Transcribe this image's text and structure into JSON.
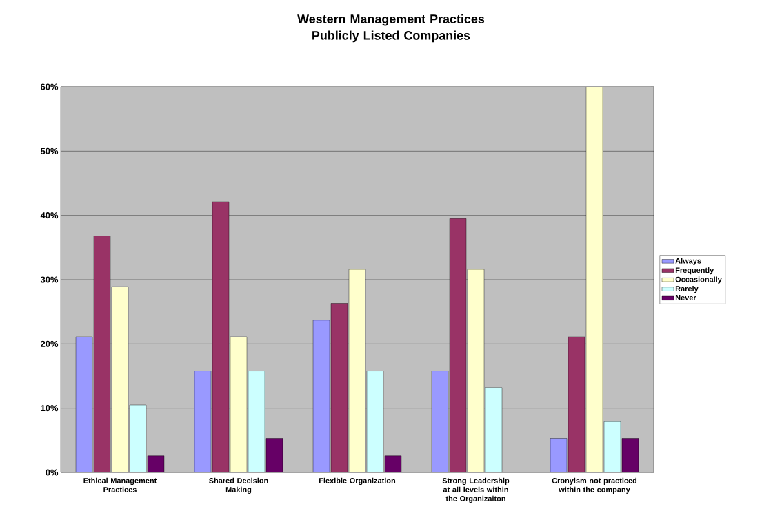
{
  "chart_data": {
    "type": "bar",
    "title": "Western Management Practices Publicly Listed Companies",
    "categories": [
      "Ethical Management Practices",
      "Shared Decision Making",
      "Flexible Organization",
      "Strong Leadership at all levels within the Organizaiton",
      "Cronyism not practiced within the company"
    ],
    "series": [
      {
        "name": "Always",
        "color": "#9999ff",
        "values": [
          21.1,
          15.8,
          23.7,
          15.8,
          5.3
        ]
      },
      {
        "name": "Frequently",
        "color": "#993366",
        "values": [
          36.8,
          42.1,
          26.3,
          39.5,
          21.1
        ]
      },
      {
        "name": "Occasionally",
        "color": "#ffffcc",
        "values": [
          28.9,
          21.1,
          31.6,
          31.6,
          60
        ]
      },
      {
        "name": "Rarely",
        "color": "#ccffff",
        "values": [
          10.5,
          15.8,
          15.8,
          13.2,
          7.9
        ]
      },
      {
        "name": "Never",
        "color": "#660066",
        "values": [
          2.6,
          5.3,
          2.6,
          0,
          5.3
        ]
      }
    ],
    "ylim": [
      0,
      60
    ],
    "yticks": [
      {
        "value": 0,
        "label": "0%"
      },
      {
        "value": 10,
        "label": "10%"
      },
      {
        "value": 20,
        "label": "20%"
      },
      {
        "value": 30,
        "label": "30%"
      },
      {
        "value": 40,
        "label": "40%"
      },
      {
        "value": 50,
        "label": "50%"
      },
      {
        "value": 60,
        "label": "60%"
      }
    ],
    "grid": "y",
    "legend": "right"
  }
}
